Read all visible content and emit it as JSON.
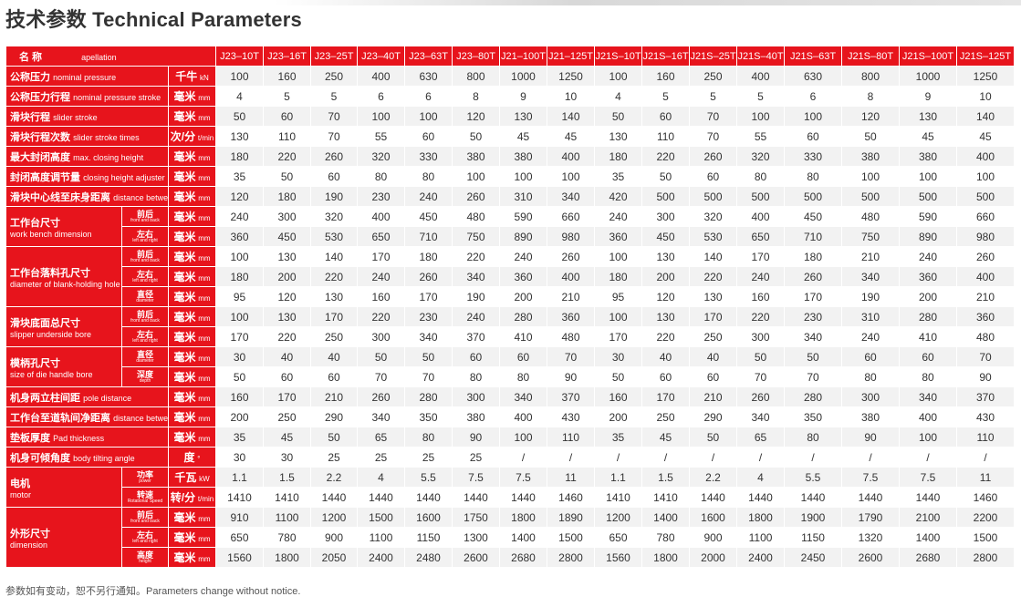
{
  "title": "技术参数 Technical Parameters",
  "footnote": "参数如有变动，恕不另行通知。Parameters change without notice.",
  "header": {
    "name_zh": "名 称",
    "name_en": "apellation"
  },
  "models": [
    "J23–10T",
    "J23–16T",
    "J23–25T",
    "J23–40T",
    "J23–63T",
    "J23–80T",
    "J21–100T",
    "J21–125T",
    "J21S–10T",
    "J21S–16T",
    "J21S–25T",
    "J21S–40T",
    "J21S–63T",
    "J21S–80T",
    "J21S–100T",
    "J21S–125T"
  ],
  "rows": [
    {
      "zh": "公称压力",
      "en": "nominal pressure",
      "sub_zh": "",
      "sub_en": "",
      "unit_zh": "千牛",
      "unit_en": "kN",
      "values": [
        "100",
        "160",
        "250",
        "400",
        "630",
        "800",
        "1000",
        "1250",
        "100",
        "160",
        "250",
        "400",
        "630",
        "800",
        "1000",
        "1250"
      ]
    },
    {
      "zh": "公称压力行程",
      "en": "nominal pressure stroke",
      "sub_zh": "",
      "sub_en": "",
      "unit_zh": "毫米",
      "unit_en": "mm",
      "values": [
        "4",
        "5",
        "5",
        "6",
        "6",
        "8",
        "9",
        "10",
        "4",
        "5",
        "5",
        "5",
        "6",
        "8",
        "9",
        "10"
      ]
    },
    {
      "zh": "滑块行程",
      "en": "slider stroke",
      "sub_zh": "",
      "sub_en": "",
      "unit_zh": "毫米",
      "unit_en": "mm",
      "values": [
        "50",
        "60",
        "70",
        "100",
        "100",
        "120",
        "130",
        "140",
        "50",
        "60",
        "70",
        "100",
        "100",
        "120",
        "130",
        "140"
      ]
    },
    {
      "zh": "滑块行程次数",
      "en": "slider stroke times",
      "sub_zh": "",
      "sub_en": "",
      "unit_zh": "次/分",
      "unit_en": "t/min",
      "values": [
        "130",
        "110",
        "70",
        "55",
        "60",
        "50",
        "45",
        "45",
        "130",
        "110",
        "70",
        "55",
        "60",
        "50",
        "45",
        "45"
      ]
    },
    {
      "zh": "最大封闭高度",
      "en": "max. closing height",
      "sub_zh": "",
      "sub_en": "",
      "unit_zh": "毫米",
      "unit_en": "mm",
      "values": [
        "180",
        "220",
        "260",
        "320",
        "330",
        "380",
        "380",
        "400",
        "180",
        "220",
        "260",
        "320",
        "330",
        "380",
        "380",
        "400"
      ]
    },
    {
      "zh": "封闭高度调节量",
      "en": "closing height adjuster",
      "sub_zh": "",
      "sub_en": "",
      "unit_zh": "毫米",
      "unit_en": "mm",
      "values": [
        "35",
        "50",
        "60",
        "80",
        "80",
        "100",
        "100",
        "100",
        "35",
        "50",
        "60",
        "80",
        "80",
        "100",
        "100",
        "100"
      ]
    },
    {
      "zh": "滑块中心线至床身距离",
      "en": "distance between slipper centre and machine",
      "sub_zh": "",
      "sub_en": "",
      "unit_zh": "毫米",
      "unit_en": "mm",
      "values": [
        "120",
        "180",
        "190",
        "230",
        "240",
        "260",
        "310",
        "340",
        "420",
        "500",
        "500",
        "500",
        "500",
        "500",
        "500",
        "500"
      ]
    },
    {
      "zh": "工作台尺寸",
      "en": "work bench dimension",
      "span": 2,
      "sub_zh": "前后",
      "sub_en": "front and back",
      "unit_zh": "毫米",
      "unit_en": "mm",
      "values": [
        "240",
        "300",
        "320",
        "400",
        "450",
        "480",
        "590",
        "660",
        "240",
        "300",
        "320",
        "400",
        "450",
        "480",
        "590",
        "660"
      ]
    },
    {
      "zh": "",
      "en": "",
      "sub_zh": "左右",
      "sub_en": "left and right",
      "unit_zh": "毫米",
      "unit_en": "mm",
      "values": [
        "360",
        "450",
        "530",
        "650",
        "710",
        "750",
        "890",
        "980",
        "360",
        "450",
        "530",
        "650",
        "710",
        "750",
        "890",
        "980"
      ]
    },
    {
      "zh": "工作台落料孔尺寸",
      "en": "diameter of blank-holding hole",
      "span": 3,
      "sub_zh": "前后",
      "sub_en": "front and back",
      "unit_zh": "毫米",
      "unit_en": "mm",
      "values": [
        "100",
        "130",
        "140",
        "170",
        "180",
        "220",
        "240",
        "260",
        "100",
        "130",
        "140",
        "170",
        "180",
        "210",
        "240",
        "260"
      ]
    },
    {
      "zh": "",
      "en": "",
      "sub_zh": "左右",
      "sub_en": "left and right",
      "unit_zh": "毫米",
      "unit_en": "mm",
      "values": [
        "180",
        "200",
        "220",
        "240",
        "260",
        "340",
        "360",
        "400",
        "180",
        "200",
        "220",
        "240",
        "260",
        "340",
        "360",
        "400"
      ]
    },
    {
      "zh": "",
      "en": "",
      "sub_zh": "直径",
      "sub_en": "diameter",
      "unit_zh": "毫米",
      "unit_en": "mm",
      "values": [
        "95",
        "120",
        "130",
        "160",
        "170",
        "190",
        "200",
        "210",
        "95",
        "120",
        "130",
        "160",
        "170",
        "190",
        "200",
        "210"
      ]
    },
    {
      "zh": "滑块底面总尺寸",
      "en": "slipper underside bore",
      "span": 2,
      "sub_zh": "前后",
      "sub_en": "front and back",
      "unit_zh": "毫米",
      "unit_en": "mm",
      "values": [
        "100",
        "130",
        "170",
        "220",
        "230",
        "240",
        "280",
        "360",
        "100",
        "130",
        "170",
        "220",
        "230",
        "310",
        "280",
        "360"
      ]
    },
    {
      "zh": "",
      "en": "",
      "sub_zh": "左右",
      "sub_en": "left and right",
      "unit_zh": "毫米",
      "unit_en": "mm",
      "values": [
        "170",
        "220",
        "250",
        "300",
        "340",
        "370",
        "410",
        "480",
        "170",
        "220",
        "250",
        "300",
        "340",
        "240",
        "410",
        "480"
      ]
    },
    {
      "zh": "模柄孔尺寸",
      "en": "size of die handle bore",
      "span": 2,
      "sub_zh": "直径",
      "sub_en": "diameter",
      "unit_zh": "毫米",
      "unit_en": "mm",
      "values": [
        "30",
        "40",
        "40",
        "50",
        "50",
        "60",
        "60",
        "70",
        "30",
        "40",
        "40",
        "50",
        "50",
        "60",
        "60",
        "70"
      ]
    },
    {
      "zh": "",
      "en": "",
      "sub_zh": "深度",
      "sub_en": "depth",
      "unit_zh": "毫米",
      "unit_en": "mm",
      "values": [
        "50",
        "60",
        "60",
        "70",
        "70",
        "80",
        "80",
        "90",
        "50",
        "60",
        "60",
        "70",
        "70",
        "80",
        "80",
        "90"
      ]
    },
    {
      "zh": "机身两立柱间距",
      "en": "pole distance",
      "sub_zh": "",
      "sub_en": "",
      "unit_zh": "毫米",
      "unit_en": "mm",
      "values": [
        "160",
        "170",
        "210",
        "260",
        "280",
        "300",
        "340",
        "370",
        "160",
        "170",
        "210",
        "260",
        "280",
        "300",
        "340",
        "370"
      ]
    },
    {
      "zh": "工作台至道轨间净距离",
      "en": "distance between bench to guideway",
      "sub_zh": "",
      "sub_en": "",
      "unit_zh": "毫米",
      "unit_en": "mm",
      "values": [
        "200",
        "250",
        "290",
        "340",
        "350",
        "380",
        "400",
        "430",
        "200",
        "250",
        "290",
        "340",
        "350",
        "380",
        "400",
        "430"
      ]
    },
    {
      "zh": "垫板厚度",
      "en": "Pad thickness",
      "sub_zh": "",
      "sub_en": "",
      "unit_zh": "毫米",
      "unit_en": "mm",
      "values": [
        "35",
        "45",
        "50",
        "65",
        "80",
        "90",
        "100",
        "110",
        "35",
        "45",
        "50",
        "65",
        "80",
        "90",
        "100",
        "110"
      ]
    },
    {
      "zh": "机身可倾角度",
      "en": "body tilting angle",
      "sub_zh": "",
      "sub_en": "",
      "unit_zh": "度",
      "unit_en": "°",
      "values": [
        "30",
        "30",
        "25",
        "25",
        "25",
        "25",
        "/",
        "/",
        "/",
        "/",
        "/",
        "/",
        "/",
        "/",
        "/",
        "/"
      ]
    },
    {
      "zh": "电机",
      "en": "motor",
      "span": 2,
      "sub_zh": "功率",
      "sub_en": "power",
      "unit_zh": "千瓦",
      "unit_en": "kW",
      "values": [
        "1.1",
        "1.5",
        "2.2",
        "4",
        "5.5",
        "7.5",
        "7.5",
        "11",
        "1.1",
        "1.5",
        "2.2",
        "4",
        "5.5",
        "7.5",
        "7.5",
        "11"
      ]
    },
    {
      "zh": "",
      "en": "",
      "sub_zh": "转速",
      "sub_en": "Rotational Speed",
      "unit_zh": "转/分",
      "unit_en": "t/min",
      "values": [
        "1410",
        "1410",
        "1440",
        "1440",
        "1440",
        "1440",
        "1440",
        "1460",
        "1410",
        "1410",
        "1440",
        "1440",
        "1440",
        "1440",
        "1440",
        "1460"
      ]
    },
    {
      "zh": "外形尺寸",
      "en": "dimension",
      "span": 3,
      "sub_zh": "前后",
      "sub_en": "front and back",
      "unit_zh": "毫米",
      "unit_en": "mm",
      "values": [
        "910",
        "1100",
        "1200",
        "1500",
        "1600",
        "1750",
        "1800",
        "1890",
        "1200",
        "1400",
        "1600",
        "1800",
        "1900",
        "1790",
        "2100",
        "2200"
      ]
    },
    {
      "zh": "",
      "en": "",
      "sub_zh": "左右",
      "sub_en": "left and right",
      "unit_zh": "毫米",
      "unit_en": "mm",
      "values": [
        "650",
        "780",
        "900",
        "1100",
        "1150",
        "1300",
        "1400",
        "1500",
        "650",
        "780",
        "900",
        "1100",
        "1150",
        "1320",
        "1400",
        "1500"
      ]
    },
    {
      "zh": "",
      "en": "",
      "sub_zh": "高度",
      "sub_en": "height",
      "unit_zh": "毫米",
      "unit_en": "mm",
      "values": [
        "1560",
        "1800",
        "2050",
        "2400",
        "2480",
        "2600",
        "2680",
        "2800",
        "1560",
        "1800",
        "2000",
        "2400",
        "2450",
        "2600",
        "2680",
        "2800"
      ]
    }
  ],
  "colors": {
    "header_bg": "#e7141c",
    "row_alt": "#f2f2f2"
  }
}
